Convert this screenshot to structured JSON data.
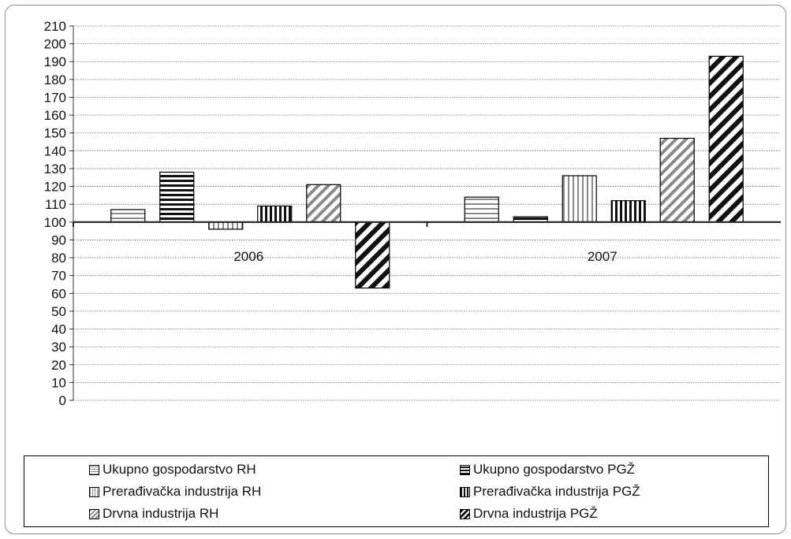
{
  "chart_data": {
    "type": "bar",
    "categories": [
      "2006",
      "2007"
    ],
    "baseline": 100,
    "ylim": [
      0,
      210
    ],
    "yticks": [
      0,
      10,
      20,
      30,
      40,
      50,
      60,
      70,
      80,
      90,
      100,
      110,
      120,
      130,
      140,
      150,
      160,
      170,
      180,
      190,
      200,
      210
    ],
    "ytick_labels": [
      "0",
      "10",
      "20",
      "30",
      "40",
      "50",
      "60",
      "70",
      "80",
      "90",
      "100",
      "110",
      "120",
      "130",
      "140",
      "150",
      "160",
      "170",
      "180",
      "190",
      "200",
      "210"
    ],
    "grid": true,
    "legend_position": "bottom",
    "series": [
      {
        "name": "Ukupno gospodarstvo RH",
        "values": [
          107,
          114
        ],
        "pattern": "hlines-light"
      },
      {
        "name": "Ukupno gospodarstvo PGŽ",
        "values": [
          128,
          103
        ],
        "pattern": "hlines-dark"
      },
      {
        "name": "Prerađivačka industrija RH",
        "values": [
          96,
          126
        ],
        "pattern": "vlines-light"
      },
      {
        "name": "Prerađivačka industrija PGŽ",
        "values": [
          109,
          112
        ],
        "pattern": "vlines-dark"
      },
      {
        "name": "Drvna industrija RH",
        "values": [
          121,
          147
        ],
        "pattern": "diag-light"
      },
      {
        "name": "Drvna industrija PGŽ",
        "values": [
          63,
          193
        ],
        "pattern": "diag-dark"
      }
    ]
  }
}
